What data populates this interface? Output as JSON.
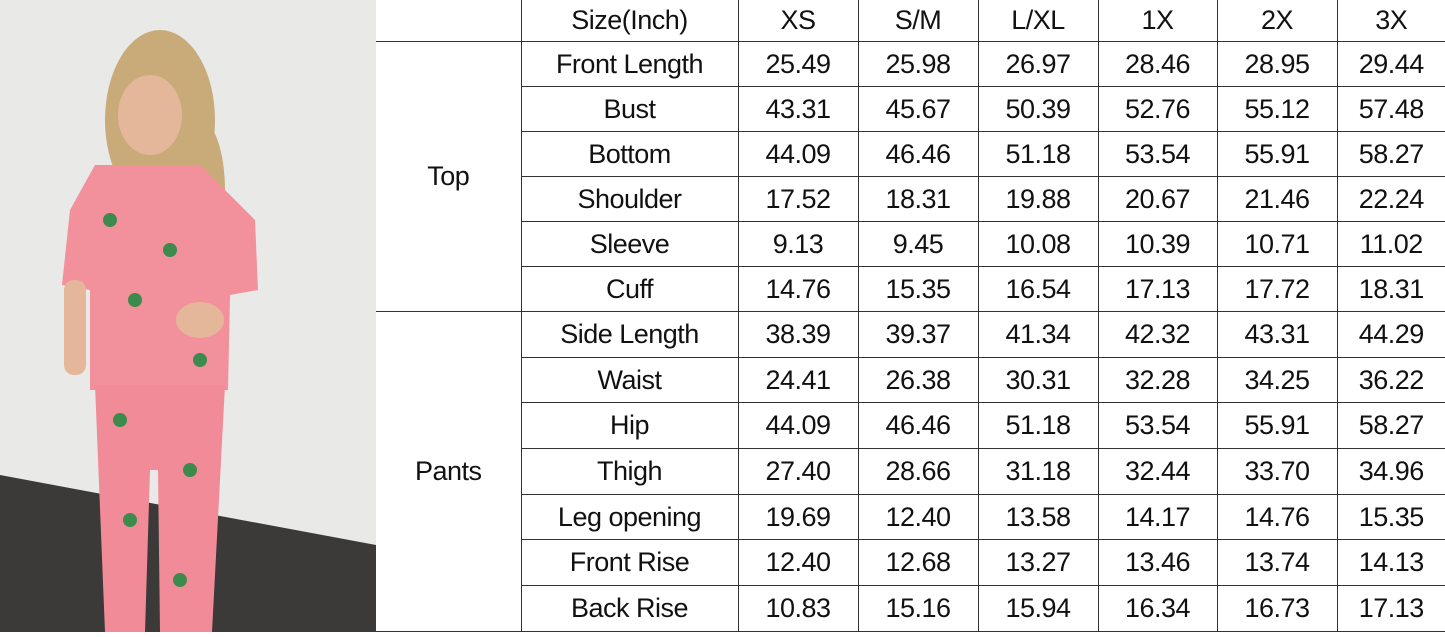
{
  "photo": {
    "description_icon": "model-photo",
    "colors": {
      "wall": "#e9e9e7",
      "floor": "#3b3a38",
      "garment": "#f2909b",
      "hair": "#c9ab7a"
    }
  },
  "size_chart": {
    "header_label": "Size(Inch)",
    "sizes": [
      "XS",
      "S/M",
      "L/XL",
      "1X",
      "2X",
      "3X"
    ],
    "groups": [
      {
        "name": "Top",
        "rows": [
          {
            "label": "Front Length",
            "values": [
              "25.49",
              "25.98",
              "26.97",
              "28.46",
              "28.95",
              "29.44"
            ]
          },
          {
            "label": "Bust",
            "values": [
              "43.31",
              "45.67",
              "50.39",
              "52.76",
              "55.12",
              "57.48"
            ]
          },
          {
            "label": "Bottom",
            "values": [
              "44.09",
              "46.46",
              "51.18",
              "53.54",
              "55.91",
              "58.27"
            ]
          },
          {
            "label": "Shoulder",
            "values": [
              "17.52",
              "18.31",
              "19.88",
              "20.67",
              "21.46",
              "22.24"
            ]
          },
          {
            "label": "Sleeve",
            "values": [
              "9.13",
              "9.45",
              "10.08",
              "10.39",
              "10.71",
              "11.02"
            ]
          },
          {
            "label": "Cuff",
            "values": [
              "14.76",
              "15.35",
              "16.54",
              "17.13",
              "17.72",
              "18.31"
            ]
          }
        ]
      },
      {
        "name": "Pants",
        "rows": [
          {
            "label": "Side Length",
            "values": [
              "38.39",
              "39.37",
              "41.34",
              "42.32",
              "43.31",
              "44.29"
            ]
          },
          {
            "label": "Waist",
            "values": [
              "24.41",
              "26.38",
              "30.31",
              "32.28",
              "34.25",
              "36.22"
            ]
          },
          {
            "label": "Hip",
            "values": [
              "44.09",
              "46.46",
              "51.18",
              "53.54",
              "55.91",
              "58.27"
            ]
          },
          {
            "label": "Thigh",
            "values": [
              "27.40",
              "28.66",
              "31.18",
              "32.44",
              "33.70",
              "34.96"
            ]
          },
          {
            "label": "Leg opening",
            "values": [
              "19.69",
              "12.40",
              "13.58",
              "14.17",
              "14.76",
              "15.35"
            ]
          },
          {
            "label": "Front Rise",
            "values": [
              "12.40",
              "12.68",
              "13.27",
              "13.46",
              "13.74",
              "14.13"
            ]
          },
          {
            "label": "Back Rise",
            "values": [
              "10.83",
              "15.16",
              "15.94",
              "16.34",
              "16.73",
              "17.13"
            ]
          }
        ]
      }
    ]
  }
}
